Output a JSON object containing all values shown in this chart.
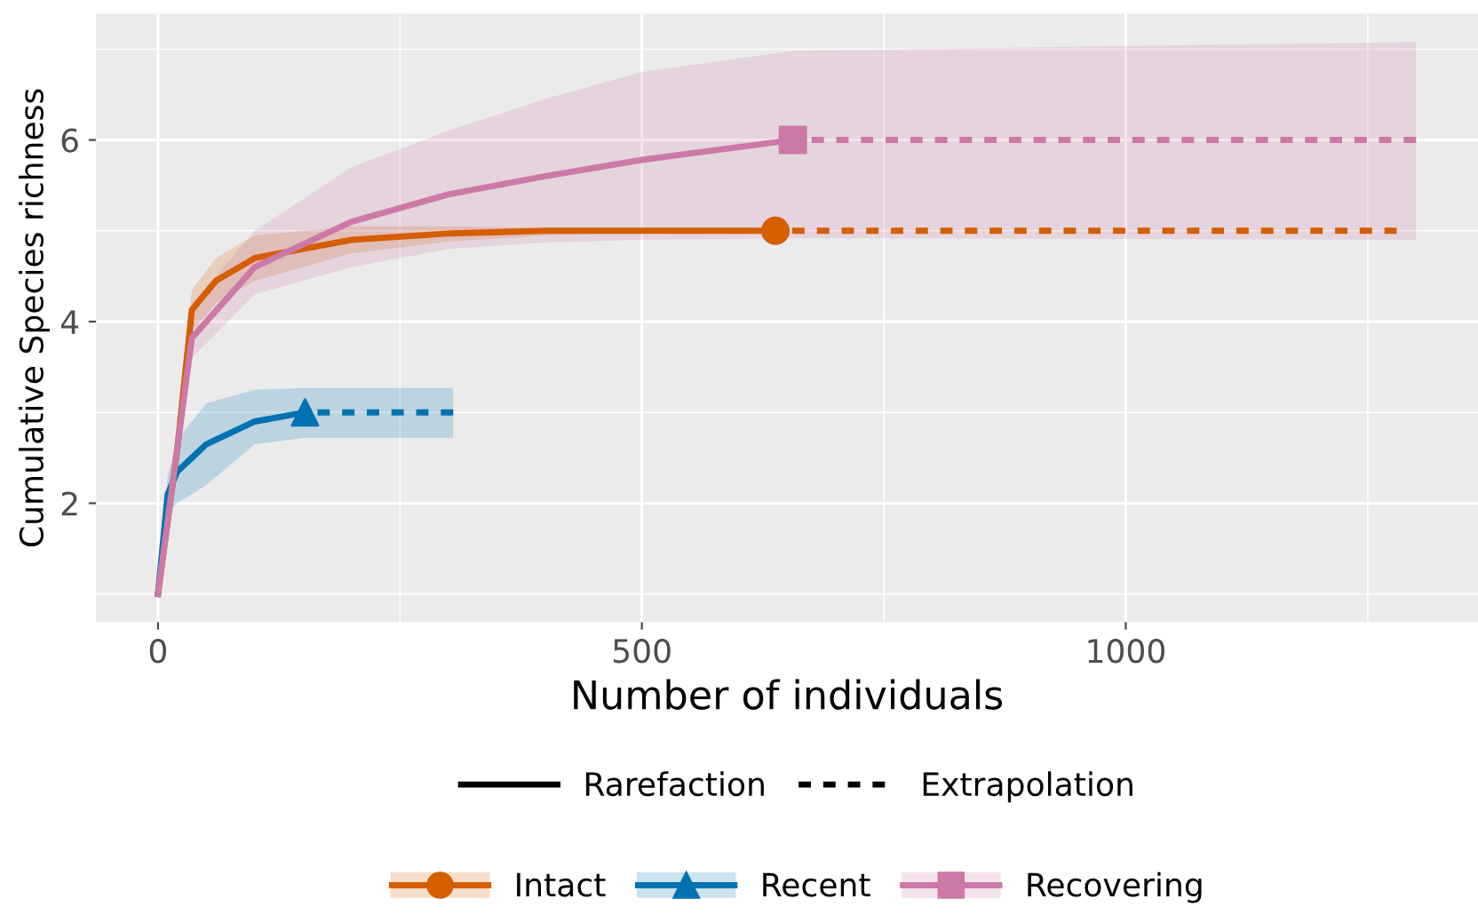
{
  "chart_data": {
    "type": "line",
    "xlabel": "Number of individuals",
    "ylabel": "Cumulative Species richness",
    "xlim": [
      -64,
      1364
    ],
    "ylim": [
      0.69,
      7.39
    ],
    "xticks": [
      0,
      500,
      1000
    ],
    "yticks": [
      2,
      4,
      6
    ],
    "grid": true,
    "legend": "bottom",
    "annotations": [
      "Rarefaction",
      "Extrapolation"
    ],
    "series": [
      {
        "name": "Intact",
        "color": "#d55e00",
        "line_style": "solid",
        "x": [
          0,
          20,
          35,
          60,
          100,
          200,
          300,
          400,
          500,
          638,
          1280
        ],
        "values": [
          1,
          2.6,
          4.13,
          4.45,
          4.7,
          4.9,
          4.97,
          5.0,
          5.0,
          5.0,
          null
        ],
        "lower": [
          1,
          2.4,
          3.9,
          4.2,
          4.45,
          4.75,
          4.88,
          4.95,
          4.98,
          5.0,
          5.0
        ],
        "upper": [
          1,
          2.8,
          4.35,
          4.7,
          4.95,
          5.05,
          5.05,
          5.03,
          5.02,
          5.0,
          5.0
        ]
      },
      {
        "color": "#d55e00",
        "line_style": "dashed",
        "x": [
          638,
          1280
        ],
        "values": [
          5.0,
          5.0
        ]
      },
      {
        "type": "scatter",
        "color": "#d55e00",
        "marker": "circle",
        "x": [
          638
        ],
        "values": [
          5.0
        ]
      },
      {
        "name": "Recent",
        "color": "#0072b2",
        "line_style": "solid",
        "x": [
          0,
          10,
          20,
          50,
          100,
          152,
          305
        ],
        "values": [
          1,
          2.1,
          2.35,
          2.65,
          2.9,
          3.0,
          null
        ],
        "lower": [
          1,
          1.9,
          2.0,
          2.2,
          2.65,
          2.72,
          2.72
        ],
        "upper": [
          1,
          2.3,
          2.7,
          3.1,
          3.25,
          3.27,
          3.27
        ]
      },
      {
        "color": "#0072b2",
        "line_style": "dashed",
        "x": [
          152,
          305
        ],
        "values": [
          3.0,
          3.0
        ]
      },
      {
        "type": "scatter",
        "color": "#0072b2",
        "marker": "triangle",
        "x": [
          152
        ],
        "values": [
          3.0
        ]
      },
      {
        "name": "Recovering",
        "color": "#cc79a7",
        "line_style": "solid",
        "x": [
          0,
          35,
          100,
          200,
          300,
          400,
          500,
          656,
          1300
        ],
        "values": [
          1,
          3.82,
          4.6,
          5.1,
          5.4,
          5.6,
          5.78,
          6.0,
          null
        ],
        "lower": [
          1,
          3.6,
          4.3,
          4.6,
          4.8,
          4.87,
          4.9,
          4.92,
          4.9
        ],
        "upper": [
          1,
          4.2,
          5.0,
          5.7,
          6.1,
          6.45,
          6.75,
          6.98,
          7.08
        ]
      },
      {
        "color": "#cc79a7",
        "line_style": "dashed",
        "x": [
          656,
          1300
        ],
        "values": [
          6.0,
          6.0
        ]
      },
      {
        "type": "scatter",
        "color": "#cc79a7",
        "marker": "square",
        "x": [
          656
        ],
        "values": [
          6.0
        ]
      }
    ]
  }
}
